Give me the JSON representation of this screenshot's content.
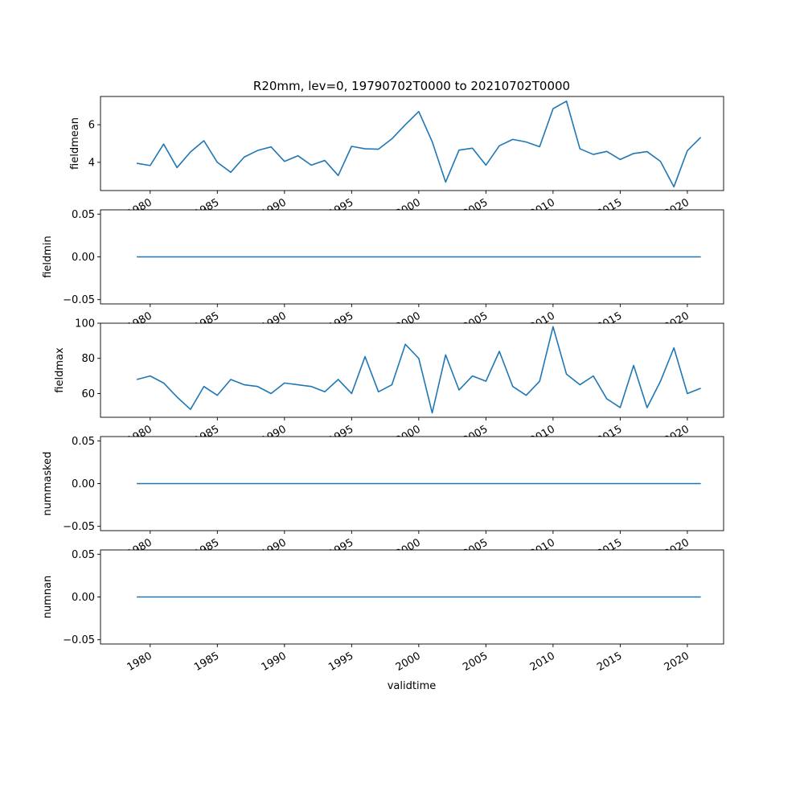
{
  "chart_data": {
    "type": "line",
    "title": "R20mm, lev=0, 19790702T0000 to 20210702T0000",
    "xlabel": "validtime",
    "x": [
      1979,
      1980,
      1981,
      1982,
      1983,
      1984,
      1985,
      1986,
      1987,
      1988,
      1989,
      1990,
      1991,
      1992,
      1993,
      1994,
      1995,
      1996,
      1997,
      1998,
      1999,
      2000,
      2001,
      2002,
      2003,
      2004,
      2005,
      2006,
      2007,
      2008,
      2009,
      2010,
      2011,
      2012,
      2013,
      2014,
      2015,
      2016,
      2017,
      2018,
      2019,
      2020,
      2021
    ],
    "xlim": [
      1976.3,
      2022.7
    ],
    "xticks": [
      1980,
      1985,
      1990,
      1995,
      2000,
      2005,
      2010,
      2015,
      2020
    ],
    "xtick_labels": [
      "1980",
      "1985",
      "1990",
      "1995",
      "2000",
      "2005",
      "2010",
      "2015",
      "2020"
    ],
    "grid": false,
    "line_color": "#1f77b4",
    "panels": [
      {
        "ylabel": "fieldmean",
        "ylim": [
          2.5,
          7.5
        ],
        "yticks": [
          4,
          6
        ],
        "ytick_labels": [
          "4",
          "6"
        ],
        "values": [
          3.95,
          3.83,
          4.97,
          3.72,
          4.55,
          5.15,
          4.0,
          3.47,
          4.28,
          4.63,
          4.82,
          4.05,
          4.35,
          3.85,
          4.1,
          3.3,
          4.85,
          4.72,
          4.7,
          5.25,
          6.0,
          6.7,
          5.1,
          2.95,
          4.65,
          4.75,
          3.85,
          4.88,
          5.22,
          5.08,
          4.83,
          6.85,
          7.25,
          4.72,
          4.42,
          4.58,
          4.15,
          4.47,
          4.57,
          4.05,
          2.7,
          4.62,
          5.33
        ]
      },
      {
        "ylabel": "fieldmin",
        "ylim": [
          -0.055,
          0.055
        ],
        "yticks": [
          -0.05,
          0.0,
          0.05
        ],
        "ytick_labels": [
          "−0.05",
          "0.00",
          "0.05"
        ],
        "values": [
          0,
          0,
          0,
          0,
          0,
          0,
          0,
          0,
          0,
          0,
          0,
          0,
          0,
          0,
          0,
          0,
          0,
          0,
          0,
          0,
          0,
          0,
          0,
          0,
          0,
          0,
          0,
          0,
          0,
          0,
          0,
          0,
          0,
          0,
          0,
          0,
          0,
          0,
          0,
          0,
          0,
          0,
          0
        ]
      },
      {
        "ylabel": "fieldmax",
        "ylim": [
          46.5,
          100
        ],
        "yticks": [
          60,
          80,
          100
        ],
        "ytick_labels": [
          "60",
          "80",
          "100"
        ],
        "values": [
          68,
          70,
          66,
          58,
          51,
          64,
          59,
          68,
          65,
          64,
          60,
          66,
          65,
          64,
          61,
          68,
          60,
          81,
          61,
          65,
          88,
          80,
          49,
          82,
          62,
          70,
          67,
          84,
          64,
          59,
          67,
          98,
          71,
          65,
          70,
          57,
          52,
          76,
          52,
          67,
          86,
          60,
          63
        ]
      },
      {
        "ylabel": "nummasked",
        "ylim": [
          -0.055,
          0.055
        ],
        "yticks": [
          -0.05,
          0.0,
          0.05
        ],
        "ytick_labels": [
          "−0.05",
          "0.00",
          "0.05"
        ],
        "values": [
          0,
          0,
          0,
          0,
          0,
          0,
          0,
          0,
          0,
          0,
          0,
          0,
          0,
          0,
          0,
          0,
          0,
          0,
          0,
          0,
          0,
          0,
          0,
          0,
          0,
          0,
          0,
          0,
          0,
          0,
          0,
          0,
          0,
          0,
          0,
          0,
          0,
          0,
          0,
          0,
          0,
          0,
          0
        ]
      },
      {
        "ylabel": "numnan",
        "ylim": [
          -0.055,
          0.055
        ],
        "yticks": [
          -0.05,
          0.0,
          0.05
        ],
        "ytick_labels": [
          "−0.05",
          "0.00",
          "0.05"
        ],
        "values": [
          0,
          0,
          0,
          0,
          0,
          0,
          0,
          0,
          0,
          0,
          0,
          0,
          0,
          0,
          0,
          0,
          0,
          0,
          0,
          0,
          0,
          0,
          0,
          0,
          0,
          0,
          0,
          0,
          0,
          0,
          0,
          0,
          0,
          0,
          0,
          0,
          0,
          0,
          0,
          0,
          0,
          0,
          0
        ]
      }
    ]
  }
}
